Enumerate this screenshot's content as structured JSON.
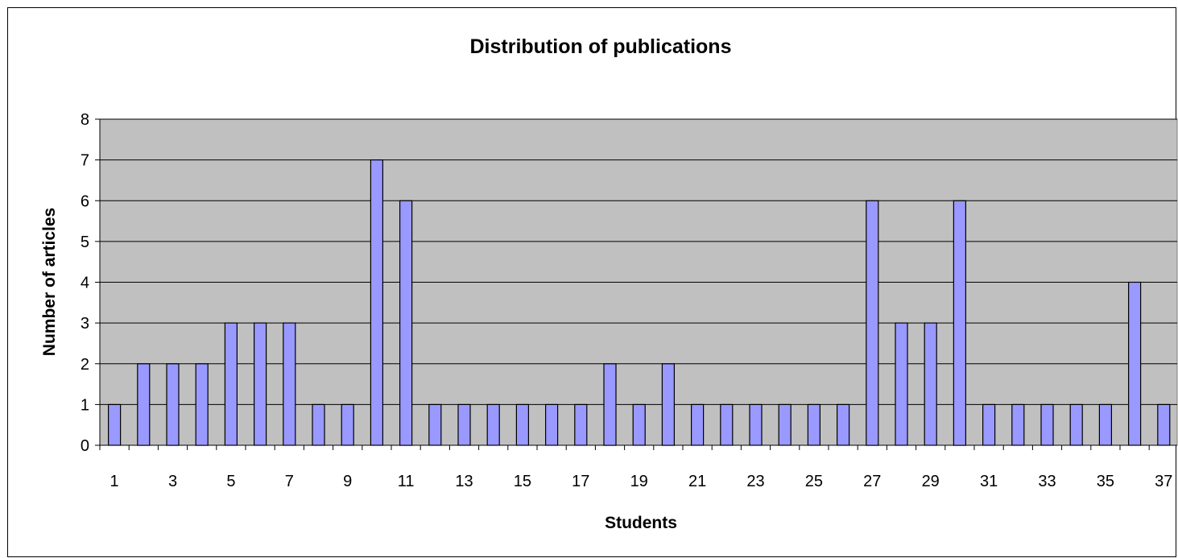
{
  "chart_data": {
    "type": "bar",
    "title": "Distribution of publications",
    "xlabel": "Students",
    "ylabel": "Number of articles",
    "categories": [
      "1",
      "2",
      "3",
      "4",
      "5",
      "6",
      "7",
      "8",
      "9",
      "10",
      "11",
      "12",
      "13",
      "14",
      "15",
      "16",
      "17",
      "18",
      "19",
      "20",
      "21",
      "22",
      "23",
      "24",
      "25",
      "26",
      "27",
      "28",
      "29",
      "30",
      "31",
      "32",
      "33",
      "34",
      "35",
      "36",
      "37"
    ],
    "x_tick_labels": [
      "1",
      "3",
      "5",
      "7",
      "9",
      "11",
      "13",
      "15",
      "17",
      "19",
      "21",
      "23",
      "25",
      "27",
      "29",
      "31",
      "33",
      "35",
      "37"
    ],
    "series": [
      {
        "values": [
          1,
          2,
          2,
          2,
          3,
          3,
          3,
          1,
          1,
          7,
          6,
          1,
          1,
          1,
          1,
          1,
          1,
          2,
          1,
          2,
          1,
          1,
          1,
          1,
          1,
          1,
          6,
          3,
          3,
          6,
          1,
          1,
          1,
          1,
          1,
          4,
          1
        ]
      }
    ],
    "ylim": [
      0,
      8
    ],
    "y_ticks": [
      0,
      1,
      2,
      3,
      4,
      5,
      6,
      7,
      8
    ],
    "grid": true,
    "legend": "none",
    "colors": {
      "bar_fill": "#9999ff",
      "bar_stroke": "#000000",
      "plot_background": "#c0c0c0",
      "gridline": "#000000"
    }
  }
}
